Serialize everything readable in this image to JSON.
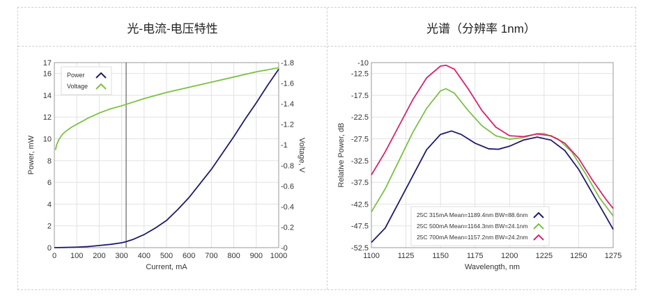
{
  "panels": {
    "left_title": "光-电流-电压特性",
    "right_title": "光谱（分辨率 1nm）"
  },
  "chart_data": [
    {
      "type": "line",
      "title": "光-电流-电压特性",
      "xlabel": "Current, mA",
      "ylabel": "Power, mW",
      "y2label": "Voltage, V",
      "xlim": [
        0,
        1000
      ],
      "ylim": [
        0,
        17
      ],
      "y2lim": [
        0,
        1.8
      ],
      "xticks": [
        0,
        100,
        200,
        300,
        400,
        500,
        600,
        700,
        800,
        900,
        1000
      ],
      "yticks": [
        0,
        2,
        4,
        6,
        8,
        10,
        12,
        14,
        16,
        17
      ],
      "y2ticks": [
        0,
        0.2,
        0.4,
        0.6,
        0.8,
        1,
        1.2,
        1.4,
        1.6,
        1.8
      ],
      "cursor_x": 320,
      "legend_position": "top-left",
      "grid": true,
      "series": [
        {
          "name": "Power",
          "axis": "left",
          "color": "#1f1a6b",
          "x": [
            0,
            50,
            100,
            150,
            200,
            250,
            300,
            320,
            350,
            400,
            450,
            500,
            550,
            600,
            650,
            700,
            750,
            800,
            850,
            900,
            950,
            1000
          ],
          "y": [
            0,
            0.02,
            0.05,
            0.1,
            0.2,
            0.3,
            0.45,
            0.55,
            0.75,
            1.2,
            1.8,
            2.5,
            3.5,
            4.6,
            5.9,
            7.2,
            8.7,
            10.2,
            11.8,
            13.3,
            14.9,
            16.4
          ]
        },
        {
          "name": "Voltage",
          "axis": "right",
          "color": "#7ac143",
          "x": [
            5,
            10,
            20,
            35,
            50,
            75,
            100,
            150,
            200,
            250,
            300,
            400,
            500,
            600,
            700,
            800,
            900,
            1000
          ],
          "y": [
            0.95,
            1.0,
            1.05,
            1.1,
            1.13,
            1.17,
            1.2,
            1.26,
            1.31,
            1.35,
            1.38,
            1.45,
            1.51,
            1.56,
            1.61,
            1.66,
            1.71,
            1.75
          ]
        }
      ]
    },
    {
      "type": "line",
      "title": "光谱（分辨率 1nm）",
      "xlabel": "Wavelength, nm",
      "ylabel": "Relative Power, dB",
      "xlim": [
        1100,
        1275
      ],
      "ylim": [
        -52.5,
        -10
      ],
      "xticks": [
        1100,
        1125,
        1150,
        1175,
        1200,
        1225,
        1250,
        1275
      ],
      "yticks": [
        -10,
        -12.5,
        -17.5,
        -22.5,
        -27.5,
        -32.5,
        -37.5,
        -42.5,
        -47.5,
        -52.5
      ],
      "legend_position": "bottom-center",
      "grid": true,
      "series": [
        {
          "name": "25C 315mA Mean=1189.4nm BW=88.6nm",
          "color": "#1f1a6b",
          "x": [
            1100,
            1110,
            1120,
            1130,
            1140,
            1150,
            1158,
            1165,
            1175,
            1185,
            1192,
            1200,
            1210,
            1220,
            1230,
            1240,
            1250,
            1260,
            1270,
            1275
          ],
          "y": [
            -51.3,
            -48,
            -42,
            -36,
            -30,
            -26.5,
            -25.7,
            -26.5,
            -28.5,
            -29.8,
            -29.9,
            -29.2,
            -27.8,
            -27.1,
            -27.8,
            -30.2,
            -34.5,
            -40,
            -45.5,
            -48.3
          ]
        },
        {
          "name": "25C 500mA Mean=1164.3nm BW=24.1nm",
          "color": "#7ac143",
          "x": [
            1100,
            1110,
            1120,
            1130,
            1140,
            1150,
            1154,
            1160,
            1170,
            1180,
            1190,
            1200,
            1210,
            1220,
            1225,
            1235,
            1245,
            1255,
            1265,
            1275
          ],
          "y": [
            -44.3,
            -39,
            -32.5,
            -26,
            -20.5,
            -16.5,
            -16,
            -17,
            -21,
            -24.5,
            -26.8,
            -27.6,
            -27.2,
            -26.3,
            -26.3,
            -27.5,
            -30.5,
            -35.5,
            -41,
            -45.2
          ]
        },
        {
          "name": "25C 700mA Mean=1157.2nm BW=24.2nm",
          "color": "#d6246e",
          "x": [
            1100,
            1110,
            1120,
            1130,
            1140,
            1150,
            1154,
            1160,
            1170,
            1180,
            1190,
            1200,
            1210,
            1220,
            1230,
            1240,
            1250,
            1260,
            1270,
            1275
          ],
          "y": [
            -35.8,
            -30.5,
            -24.5,
            -18.5,
            -13.5,
            -10.8,
            -10.6,
            -11.5,
            -16,
            -21,
            -24.8,
            -26.8,
            -27,
            -26.4,
            -26.8,
            -28.5,
            -32,
            -37,
            -41.5,
            -43.5
          ]
        }
      ]
    }
  ]
}
